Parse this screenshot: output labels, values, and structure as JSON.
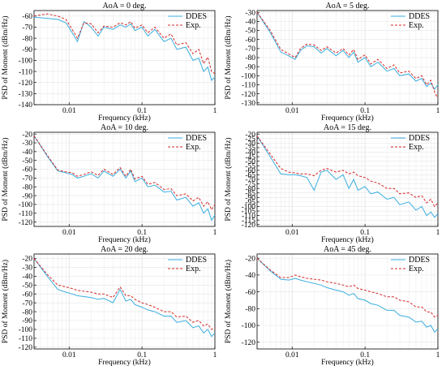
{
  "figure": {
    "xlabel": "Frequency (kHz)",
    "ylabel": "PSD of Moment (dBm/Hz)"
  },
  "colors": {
    "DDES": "#3aaee0",
    "Exp.": "#d62728"
  },
  "chart_data": [
    {
      "type": "line",
      "title": "AoA = 0 deg.",
      "xlabel": "Frequency (kHz)",
      "ylabel": "PSD of Moment (dBm/Hz)",
      "xscale": "log",
      "xlim": [
        0.0033,
        1
      ],
      "ylim": [
        -140,
        -55
      ],
      "yticks": [
        -140,
        -130,
        -120,
        -110,
        -100,
        -90,
        -80,
        -70,
        -60
      ],
      "xticks": [
        0.01,
        0.1,
        1
      ],
      "xticklabels": [
        "0.01",
        "0.1",
        "1"
      ],
      "legend": "top-right",
      "series": [
        {
          "name": "DDES",
          "x": [
            0.0033,
            0.005,
            0.007,
            0.009,
            0.011,
            0.013,
            0.016,
            0.02,
            0.025,
            0.03,
            0.04,
            0.05,
            0.06,
            0.07,
            0.08,
            0.1,
            0.12,
            0.15,
            0.2,
            0.25,
            0.3,
            0.4,
            0.5,
            0.6,
            0.7,
            0.8,
            0.9,
            1.0
          ],
          "y": [
            -61,
            -62,
            -63,
            -66,
            -75,
            -83,
            -65,
            -70,
            -78,
            -70,
            -72,
            -68,
            -70,
            -67,
            -73,
            -70,
            -78,
            -72,
            -83,
            -80,
            -90,
            -88,
            -100,
            -98,
            -110,
            -106,
            -118,
            -115
          ]
        },
        {
          "name": "Exp.",
          "x": [
            0.0033,
            0.005,
            0.007,
            0.009,
            0.011,
            0.013,
            0.016,
            0.02,
            0.025,
            0.03,
            0.04,
            0.05,
            0.06,
            0.07,
            0.08,
            0.1,
            0.12,
            0.15,
            0.2,
            0.25,
            0.3,
            0.4,
            0.5,
            0.6,
            0.7,
            0.8,
            0.9,
            1.0
          ],
          "y": [
            -60,
            -58,
            -60,
            -63,
            -72,
            -80,
            -66,
            -67,
            -75,
            -69,
            -70,
            -66,
            -68,
            -65,
            -71,
            -68,
            -75,
            -70,
            -80,
            -76,
            -86,
            -84,
            -94,
            -90,
            -103,
            -97,
            -110,
            -112
          ]
        }
      ]
    },
    {
      "type": "line",
      "title": "AoA = 5 deg.",
      "xlabel": "Frequency (kHz)",
      "ylabel": "PSD of Moment (dBm/Hz)",
      "xscale": "log",
      "xlim": [
        0.0033,
        1
      ],
      "ylim": [
        -132,
        -28
      ],
      "yticks": [
        -130,
        -120,
        -110,
        -100,
        -90,
        -80,
        -70,
        -60,
        -50,
        -40,
        -30
      ],
      "xticks": [
        0.01,
        0.1,
        1
      ],
      "xticklabels": [
        "0.01",
        "0.1",
        "1"
      ],
      "legend": "top-right",
      "series": [
        {
          "name": "DDES",
          "x": [
            0.0033,
            0.005,
            0.007,
            0.009,
            0.011,
            0.013,
            0.016,
            0.02,
            0.025,
            0.03,
            0.04,
            0.05,
            0.06,
            0.07,
            0.08,
            0.1,
            0.12,
            0.15,
            0.2,
            0.25,
            0.3,
            0.4,
            0.5,
            0.6,
            0.7,
            0.8,
            0.9,
            1.0
          ],
          "y": [
            -30,
            -52,
            -74,
            -78,
            -82,
            -72,
            -67,
            -68,
            -75,
            -70,
            -78,
            -72,
            -80,
            -74,
            -85,
            -80,
            -90,
            -85,
            -95,
            -92,
            -100,
            -98,
            -106,
            -103,
            -112,
            -108,
            -115,
            -110
          ]
        },
        {
          "name": "Exp.",
          "x": [
            0.0033,
            0.005,
            0.007,
            0.009,
            0.011,
            0.013,
            0.016,
            0.02,
            0.025,
            0.03,
            0.04,
            0.05,
            0.06,
            0.07,
            0.08,
            0.1,
            0.12,
            0.15,
            0.2,
            0.25,
            0.3,
            0.4,
            0.5,
            0.6,
            0.7,
            0.8,
            0.9,
            1.0
          ],
          "y": [
            -30,
            -50,
            -71,
            -76,
            -80,
            -70,
            -65,
            -66,
            -72,
            -68,
            -75,
            -70,
            -77,
            -71,
            -82,
            -77,
            -87,
            -82,
            -92,
            -88,
            -97,
            -95,
            -103,
            -100,
            -110,
            -105,
            -118,
            -125
          ]
        }
      ]
    },
    {
      "type": "line",
      "title": "AoA = 10 deg.",
      "xlabel": "Frequency (kHz)",
      "ylabel": "PSD of Moment (dBm/Hz)",
      "xscale": "log",
      "xlim": [
        0.0033,
        1
      ],
      "ylim": [
        -125,
        -18
      ],
      "yticks": [
        -120,
        -110,
        -100,
        -90,
        -80,
        -70,
        -60,
        -50,
        -40,
        -30,
        -20
      ],
      "xticks": [
        0.01,
        0.1,
        1
      ],
      "xticklabels": [
        "0.01",
        "0.1",
        "1"
      ],
      "legend": "top-right",
      "series": [
        {
          "name": "DDES",
          "x": [
            0.0033,
            0.005,
            0.007,
            0.009,
            0.011,
            0.013,
            0.016,
            0.02,
            0.025,
            0.03,
            0.04,
            0.05,
            0.06,
            0.07,
            0.08,
            0.1,
            0.12,
            0.15,
            0.2,
            0.25,
            0.3,
            0.4,
            0.5,
            0.6,
            0.7,
            0.8,
            0.9,
            1.0
          ],
          "y": [
            -22,
            -45,
            -62,
            -64,
            -66,
            -70,
            -68,
            -65,
            -70,
            -62,
            -68,
            -60,
            -70,
            -62,
            -74,
            -70,
            -80,
            -78,
            -86,
            -85,
            -95,
            -92,
            -102,
            -98,
            -110,
            -105,
            -118,
            -112
          ]
        },
        {
          "name": "Exp.",
          "x": [
            0.0033,
            0.005,
            0.007,
            0.009,
            0.011,
            0.013,
            0.016,
            0.02,
            0.025,
            0.03,
            0.04,
            0.05,
            0.06,
            0.07,
            0.08,
            0.1,
            0.12,
            0.15,
            0.2,
            0.25,
            0.3,
            0.4,
            0.5,
            0.6,
            0.7,
            0.8,
            0.9,
            1.0
          ],
          "y": [
            -22,
            -44,
            -61,
            -63,
            -64,
            -68,
            -66,
            -63,
            -67,
            -60,
            -66,
            -58,
            -68,
            -60,
            -71,
            -68,
            -77,
            -75,
            -83,
            -82,
            -90,
            -88,
            -96,
            -92,
            -102,
            -97,
            -106,
            -100
          ]
        }
      ]
    },
    {
      "type": "line",
      "title": "AoA = 15 deg.",
      "xlabel": "Frequency (kHz)",
      "ylabel": "PSD of Moment (dBm/Hz)",
      "xscale": "log",
      "xlim": [
        0.0033,
        1
      ],
      "ylim": [
        -122,
        -18
      ],
      "yticks": [
        -120,
        -115,
        -110,
        -105,
        -100,
        -95,
        -90,
        -85,
        -80,
        -75,
        -70,
        -65,
        -60,
        -55,
        -50,
        -45,
        -40,
        -35,
        -30,
        -25,
        -20
      ],
      "xticks": [
        0.01,
        0.1,
        1
      ],
      "xticklabels": [
        "0.01",
        "0.1",
        "1"
      ],
      "legend": "top-right",
      "series": [
        {
          "name": "DDES",
          "x": [
            0.0033,
            0.005,
            0.007,
            0.009,
            0.011,
            0.013,
            0.016,
            0.02,
            0.025,
            0.03,
            0.04,
            0.05,
            0.06,
            0.07,
            0.08,
            0.1,
            0.12,
            0.15,
            0.2,
            0.25,
            0.3,
            0.4,
            0.5,
            0.6,
            0.7,
            0.8,
            0.9,
            1.0
          ],
          "y": [
            -22,
            -45,
            -64,
            -65,
            -65,
            -66,
            -68,
            -82,
            -62,
            -60,
            -70,
            -65,
            -80,
            -70,
            -82,
            -78,
            -86,
            -84,
            -92,
            -90,
            -98,
            -95,
            -104,
            -100,
            -110,
            -106,
            -112,
            -108
          ]
        },
        {
          "name": "Exp.",
          "x": [
            0.0033,
            0.005,
            0.007,
            0.009,
            0.011,
            0.013,
            0.016,
            0.02,
            0.025,
            0.03,
            0.04,
            0.05,
            0.06,
            0.07,
            0.08,
            0.1,
            0.12,
            0.15,
            0.2,
            0.25,
            0.3,
            0.4,
            0.5,
            0.6,
            0.7,
            0.8,
            0.9,
            1.0
          ],
          "y": [
            -22,
            -42,
            -58,
            -62,
            -63,
            -64,
            -64,
            -66,
            -60,
            -58,
            -62,
            -60,
            -64,
            -62,
            -66,
            -68,
            -72,
            -74,
            -80,
            -80,
            -86,
            -85,
            -90,
            -88,
            -96,
            -92,
            -100,
            -96
          ]
        }
      ]
    },
    {
      "type": "line",
      "title": "AoA = 20 deg.",
      "xlabel": "Frequency (kHz)",
      "ylabel": "PSD of Moment (dBm/Hz)",
      "xscale": "log",
      "xlim": [
        0.0033,
        1
      ],
      "ylim": [
        -122,
        -15
      ],
      "yticks": [
        -120,
        -110,
        -100,
        -90,
        -80,
        -70,
        -60,
        -50,
        -40,
        -30,
        -20
      ],
      "xticks": [
        0.01,
        0.1,
        1
      ],
      "xticklabels": [
        "0.01",
        "0.1",
        "1"
      ],
      "legend": "top-right",
      "series": [
        {
          "name": "DDES",
          "x": [
            0.0033,
            0.005,
            0.007,
            0.009,
            0.011,
            0.013,
            0.016,
            0.02,
            0.025,
            0.03,
            0.04,
            0.05,
            0.06,
            0.07,
            0.08,
            0.1,
            0.12,
            0.15,
            0.2,
            0.25,
            0.3,
            0.4,
            0.5,
            0.6,
            0.7,
            0.8,
            0.9,
            1.0
          ],
          "y": [
            -20,
            -40,
            -55,
            -58,
            -60,
            -62,
            -63,
            -64,
            -66,
            -65,
            -70,
            -55,
            -68,
            -66,
            -72,
            -75,
            -78,
            -80,
            -85,
            -85,
            -92,
            -90,
            -98,
            -96,
            -104,
            -100,
            -108,
            -104
          ]
        },
        {
          "name": "Exp.",
          "x": [
            0.0033,
            0.005,
            0.007,
            0.009,
            0.011,
            0.013,
            0.016,
            0.02,
            0.025,
            0.03,
            0.04,
            0.05,
            0.06,
            0.07,
            0.08,
            0.1,
            0.12,
            0.15,
            0.2,
            0.25,
            0.3,
            0.4,
            0.5,
            0.6,
            0.7,
            0.8,
            0.9,
            1.0
          ],
          "y": [
            -20,
            -38,
            -50,
            -52,
            -54,
            -56,
            -57,
            -58,
            -60,
            -60,
            -64,
            -52,
            -62,
            -62,
            -66,
            -70,
            -72,
            -75,
            -80,
            -80,
            -86,
            -85,
            -92,
            -90,
            -96,
            -94,
            -100,
            -98
          ]
        }
      ]
    },
    {
      "type": "line",
      "title": "AoA = 45 deg.",
      "xlabel": "Frequency (kHz)",
      "ylabel": "PSD of Moment (dBm/Hz)",
      "xscale": "log",
      "xlim": [
        0.0033,
        1
      ],
      "ylim": [
        -128,
        -15
      ],
      "yticks": [
        -120,
        -100,
        -80,
        -60,
        -40,
        -20
      ],
      "xticks": [
        0.01,
        0.1,
        1
      ],
      "xticklabels": [
        "0.01",
        "0.1",
        "1"
      ],
      "legend": "top-right",
      "series": [
        {
          "name": "DDES",
          "x": [
            0.0033,
            0.005,
            0.007,
            0.009,
            0.011,
            0.013,
            0.016,
            0.02,
            0.025,
            0.03,
            0.04,
            0.05,
            0.06,
            0.07,
            0.08,
            0.1,
            0.12,
            0.15,
            0.2,
            0.25,
            0.3,
            0.4,
            0.5,
            0.6,
            0.7,
            0.8,
            0.9,
            1.0
          ],
          "y": [
            -20,
            -35,
            -45,
            -46,
            -44,
            -46,
            -48,
            -50,
            -52,
            -55,
            -58,
            -60,
            -64,
            -62,
            -68,
            -70,
            -74,
            -76,
            -82,
            -82,
            -88,
            -90,
            -96,
            -95,
            -102,
            -100,
            -108,
            -104
          ]
        },
        {
          "name": "Exp.",
          "x": [
            0.0033,
            0.005,
            0.007,
            0.009,
            0.011,
            0.013,
            0.016,
            0.02,
            0.025,
            0.03,
            0.04,
            0.05,
            0.06,
            0.07,
            0.08,
            0.1,
            0.12,
            0.15,
            0.2,
            0.25,
            0.3,
            0.4,
            0.5,
            0.6,
            0.7,
            0.8,
            0.9,
            1.0
          ],
          "y": [
            -20,
            -34,
            -43,
            -43,
            -40,
            -42,
            -44,
            -45,
            -46,
            -48,
            -50,
            -52,
            -54,
            -52,
            -56,
            -58,
            -60,
            -62,
            -66,
            -66,
            -70,
            -72,
            -78,
            -78,
            -84,
            -84,
            -90,
            -88
          ]
        }
      ]
    }
  ]
}
